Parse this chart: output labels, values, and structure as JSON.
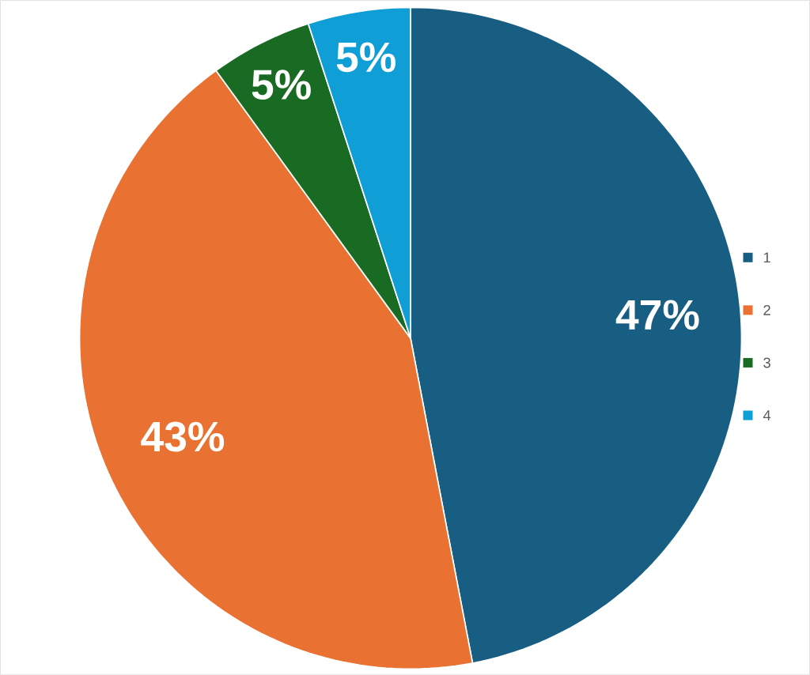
{
  "chart_data": {
    "type": "pie",
    "categories": [
      "1",
      "2",
      "3",
      "4"
    ],
    "values": [
      47,
      43,
      5,
      5
    ],
    "colors": [
      "#175e82",
      "#e97132",
      "#196b24",
      "#0f9ed5"
    ],
    "value_labels": [
      "47%",
      "43%",
      "5%",
      "5%"
    ],
    "legend": "right"
  }
}
